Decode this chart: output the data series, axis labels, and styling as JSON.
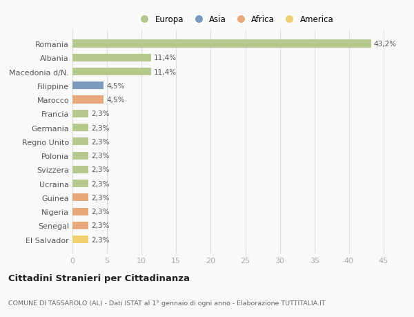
{
  "categories": [
    "Romania",
    "Albania",
    "Macedonia d/N.",
    "Filippine",
    "Marocco",
    "Francia",
    "Germania",
    "Regno Unito",
    "Polonia",
    "Svizzera",
    "Ucraina",
    "Guinea",
    "Nigeria",
    "Senegal",
    "El Salvador"
  ],
  "values": [
    43.2,
    11.4,
    11.4,
    4.5,
    4.5,
    2.3,
    2.3,
    2.3,
    2.3,
    2.3,
    2.3,
    2.3,
    2.3,
    2.3,
    2.3
  ],
  "labels": [
    "43,2%",
    "11,4%",
    "11,4%",
    "4,5%",
    "4,5%",
    "2,3%",
    "2,3%",
    "2,3%",
    "2,3%",
    "2,3%",
    "2,3%",
    "2,3%",
    "2,3%",
    "2,3%",
    "2,3%"
  ],
  "colors": [
    "#b5c98e",
    "#b5c98e",
    "#b5c98e",
    "#7a9bbe",
    "#e8a87c",
    "#b5c98e",
    "#b5c98e",
    "#b5c98e",
    "#b5c98e",
    "#b5c98e",
    "#b5c98e",
    "#e8a87c",
    "#e8a87c",
    "#e8a87c",
    "#f0d070"
  ],
  "legend_labels": [
    "Europa",
    "Asia",
    "Africa",
    "America"
  ],
  "legend_colors": [
    "#b5c98e",
    "#7a9bbe",
    "#e8a87c",
    "#f0d070"
  ],
  "title": "Cittadini Stranieri per Cittadinanza",
  "subtitle": "COMUNE DI TASSAROLO (AL) - Dati ISTAT al 1° gennaio di ogni anno - Elaborazione TUTTITALIA.IT",
  "xlim": [
    0,
    47
  ],
  "xticks": [
    0,
    5,
    10,
    15,
    20,
    25,
    30,
    35,
    40,
    45
  ],
  "background_color": "#f9f9f9",
  "grid_color": "#dddddd",
  "bar_height": 0.55
}
